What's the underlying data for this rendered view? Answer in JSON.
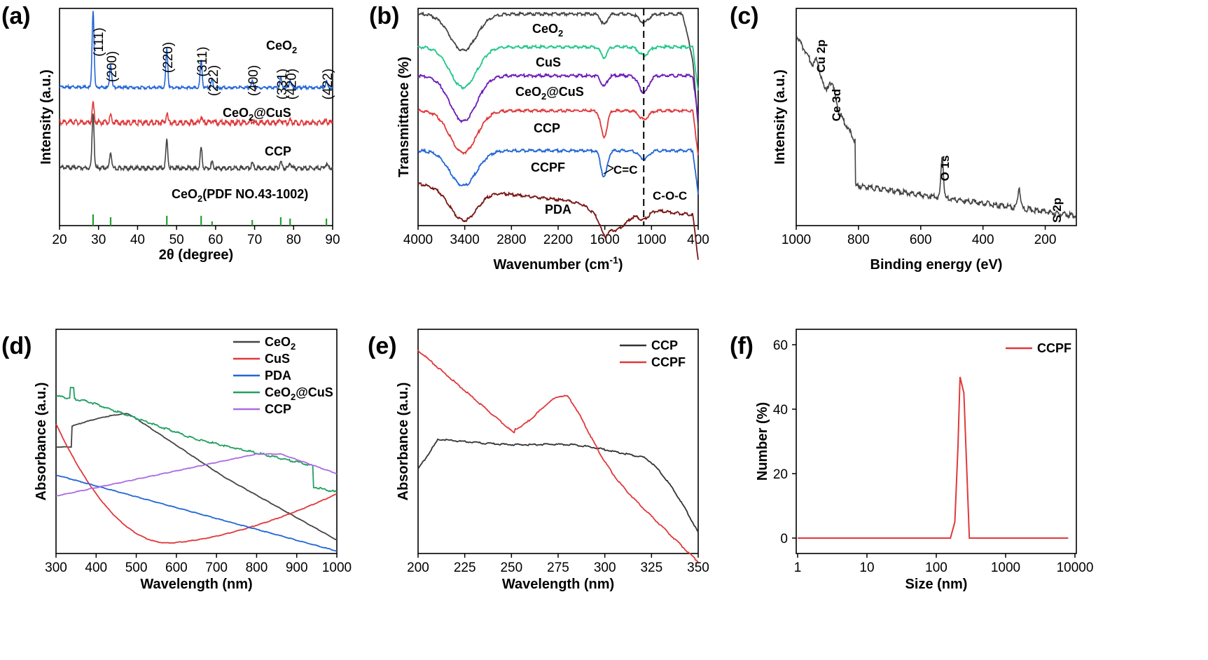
{
  "panels": {
    "a": {
      "label": "(a)"
    },
    "b": {
      "label": "(b)"
    },
    "c": {
      "label": "(c)"
    },
    "d": {
      "label": "(d)"
    },
    "e": {
      "label": "(e)"
    },
    "f": {
      "label": "(f)"
    }
  },
  "chart_data": [
    {
      "id": "a",
      "type": "line",
      "xlabel": "2θ (degree)",
      "ylabel": "Intensity (a.u.)",
      "xlim": [
        20,
        90
      ],
      "xticks": [
        "20",
        "30",
        "40",
        "50",
        "60",
        "70",
        "80",
        "90"
      ],
      "series": [
        {
          "name": "CeO2",
          "color": "#2166d6",
          "label_sub": [
            "CeO",
            "2"
          ]
        },
        {
          "name": "CeO2@CuS",
          "color": "#e0393b",
          "label_sub": [
            "CeO",
            "2",
            "@CuS"
          ]
        },
        {
          "name": "CCP",
          "color": "#444444",
          "label_sub": [
            "CCP"
          ]
        }
      ],
      "peaks": [
        {
          "two_theta": 28.6,
          "hkl": "(111)"
        },
        {
          "two_theta": 33.1,
          "hkl": "(200)"
        },
        {
          "two_theta": 47.5,
          "hkl": "(220)"
        },
        {
          "two_theta": 56.3,
          "hkl": "(311)"
        },
        {
          "two_theta": 59.1,
          "hkl": "(222)"
        },
        {
          "two_theta": 69.4,
          "hkl": "(400)"
        },
        {
          "two_theta": 76.7,
          "hkl": "(331)"
        },
        {
          "two_theta": 79.1,
          "hkl": "(420)"
        },
        {
          "two_theta": 88.4,
          "hkl": "(422)"
        }
      ],
      "reference": {
        "label_sub": [
          "CeO",
          "2",
          "(PDF NO.43-1002)"
        ],
        "color": "#22a02e",
        "positions": [
          28.6,
          33.1,
          47.5,
          56.3,
          59.1,
          69.4,
          76.7,
          79.1,
          88.4
        ]
      }
    },
    {
      "id": "b",
      "type": "line",
      "xlabel": "Wavenumber (cm",
      "xlabel_sup": "-1",
      "xlabel_end": ")",
      "ylabel": "Transmittance (%)",
      "xlim": [
        4000,
        400
      ],
      "xticks": [
        "4000",
        "3400",
        "2800",
        "2200",
        "1600",
        "1000",
        "400"
      ],
      "dashed_line_x": 1100,
      "annotations": [
        "C=C",
        "C-O-C"
      ],
      "series": [
        {
          "name": "CeO2",
          "color": "#444444",
          "label_sub": [
            "CeO",
            "2"
          ]
        },
        {
          "name": "CuS",
          "color": "#22c88a",
          "label_sub": [
            "CuS"
          ]
        },
        {
          "name": "CeO2@CuS",
          "color": "#6a1bb8",
          "label_sub": [
            "CeO",
            "2",
            "@CuS"
          ]
        },
        {
          "name": "CCP",
          "color": "#e0393b",
          "label_sub": [
            "CCP"
          ]
        },
        {
          "name": "CCPF",
          "color": "#2166d6",
          "label_sub": [
            "CCPF"
          ]
        },
        {
          "name": "PDA",
          "color": "#7a1616",
          "label_sub": [
            "PDA"
          ]
        }
      ]
    },
    {
      "id": "c",
      "type": "line",
      "xlabel": "Binding energy (eV)",
      "ylabel": "Intensity (a.u.)",
      "xlim": [
        1000,
        100
      ],
      "xticks": [
        "1000",
        "800",
        "600",
        "400",
        "200"
      ],
      "color": "#444444",
      "peak_labels": [
        {
          "energy": 933,
          "text": "Cu 2p"
        },
        {
          "energy": 884,
          "text": "Ce 3d"
        },
        {
          "energy": 531,
          "text": "O 1s"
        },
        {
          "energy": 162,
          "text": "S 2p"
        }
      ]
    },
    {
      "id": "d",
      "type": "line",
      "xlabel": "Wavelength (nm)",
      "ylabel": "Absorbance (a.u.)",
      "xlim": [
        300,
        1000
      ],
      "xticks": [
        "300",
        "400",
        "500",
        "600",
        "700",
        "800",
        "900",
        "1000"
      ],
      "series": [
        {
          "name": "CeO2",
          "color": "#444444",
          "label_sub": [
            "CeO",
            "2"
          ]
        },
        {
          "name": "CuS",
          "color": "#e0393b",
          "label_sub": [
            "CuS"
          ]
        },
        {
          "name": "PDA",
          "color": "#2166d6",
          "label_sub": [
            "PDA"
          ]
        },
        {
          "name": "CeO2@CuS",
          "color": "#22a060",
          "label_sub": [
            "CeO",
            "2",
            "@CuS"
          ]
        },
        {
          "name": "CCP",
          "color": "#a96de0",
          "label_sub": [
            "CCP"
          ]
        }
      ],
      "legend": "top-right"
    },
    {
      "id": "e",
      "type": "line",
      "xlabel": "Wavelength (nm)",
      "ylabel": "Absorbance (a.u.)",
      "xlim": [
        200,
        350
      ],
      "xticks": [
        "200",
        "225",
        "250",
        "275",
        "300",
        "325",
        "350"
      ],
      "series": [
        {
          "name": "CCP",
          "color": "#333333",
          "label_sub": [
            "CCP"
          ]
        },
        {
          "name": "CCPF",
          "color": "#e0393b",
          "label_sub": [
            "CCPF"
          ]
        }
      ],
      "legend": "top-right"
    },
    {
      "id": "f",
      "type": "line",
      "xlabel": "Size (nm)",
      "ylabel": "Number (%)",
      "xscale": "log",
      "xlim": [
        1,
        10000
      ],
      "xticks": [
        "1",
        "10",
        "100",
        "1000",
        "10000"
      ],
      "ylim": [
        0,
        65
      ],
      "yticks": [
        "0",
        "20",
        "40",
        "60"
      ],
      "series": [
        {
          "name": "CCPF",
          "color": "#e0393b",
          "label_sub": [
            "CCPF"
          ],
          "x": [
            1,
            160,
            185,
            205,
            220,
            250,
            300,
            8000
          ],
          "y": [
            0,
            0,
            5,
            28,
            50,
            45,
            0,
            0
          ]
        }
      ],
      "legend": "top-right"
    }
  ]
}
